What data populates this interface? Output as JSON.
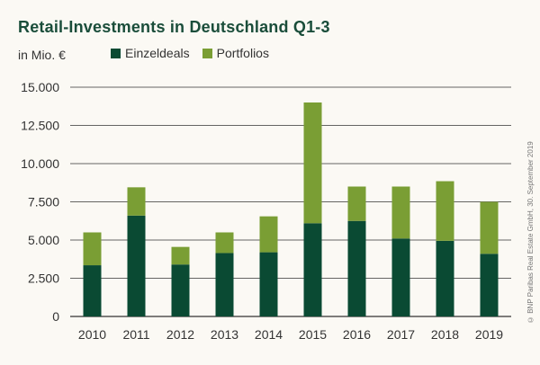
{
  "chart_data": {
    "type": "bar",
    "stacked": true,
    "title": "Retail-Investments in Deutschland Q1-3",
    "ylabel": "in Mio. €",
    "xlabel": "",
    "categories": [
      "2010",
      "2011",
      "2012",
      "2013",
      "2014",
      "2015",
      "2016",
      "2017",
      "2018",
      "2019"
    ],
    "series": [
      {
        "name": "Einzeldeals",
        "color": "#0a4a33",
        "values": [
          3350,
          6600,
          3400,
          4150,
          4200,
          6100,
          6250,
          5100,
          4950,
          4100
        ]
      },
      {
        "name": "Portfolios",
        "color": "#7a9e34",
        "values": [
          2150,
          1850,
          1150,
          1350,
          2350,
          7900,
          2250,
          3400,
          3900,
          3400
        ]
      }
    ],
    "ylim": [
      0,
      15000
    ],
    "yticks": [
      0,
      2500,
      5000,
      7500,
      10000,
      12500,
      15000
    ],
    "ytick_labels": [
      "0",
      "2.500",
      "5.000",
      "7.500",
      "10.000",
      "12.500",
      "15.000"
    ],
    "grid": true,
    "legend_position": "top-left",
    "credit": "© BNP Paribas Real Estate GmbH, 30. September 2019"
  }
}
